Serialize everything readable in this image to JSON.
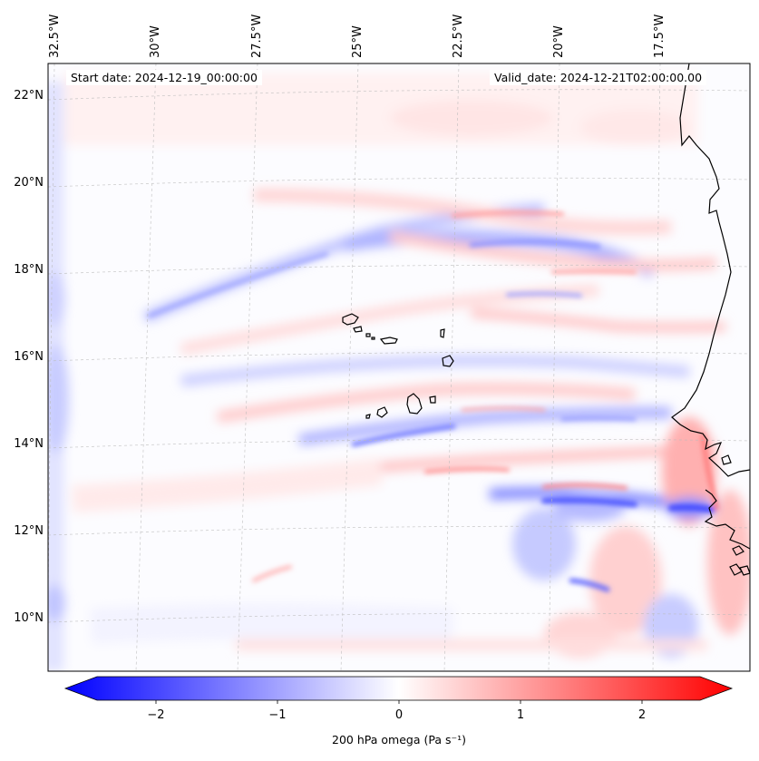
{
  "map": {
    "start_date": "Start date: 2024-12-19_00:00:00",
    "valid_date": "Valid_date: 2024-12-21T02:00:00.00",
    "longitude_labels": [
      "32.5°W",
      "30°W",
      "27.5°W",
      "25°W",
      "22.5°W",
      "20°W",
      "17.5°W"
    ],
    "latitude_labels": [
      "22°N",
      "20°N",
      "18°N",
      "16°N",
      "14°N",
      "12°N",
      "10°N"
    ],
    "field": "200 hPa omega",
    "region": "Cabo Verde islands and West African coast",
    "colors": {
      "negative": "#0000ff",
      "zero": "#ffffff",
      "positive": "#ff0000"
    }
  },
  "colorbar": {
    "ticks": [
      "−2",
      "−1",
      "0",
      "1",
      "2"
    ],
    "tick_values": [
      -2,
      -1,
      0,
      1,
      2
    ],
    "range": [
      -2.6,
      2.6
    ],
    "label": "200 hPa omega (Pa s⁻¹)",
    "colormap": "bwr"
  }
}
